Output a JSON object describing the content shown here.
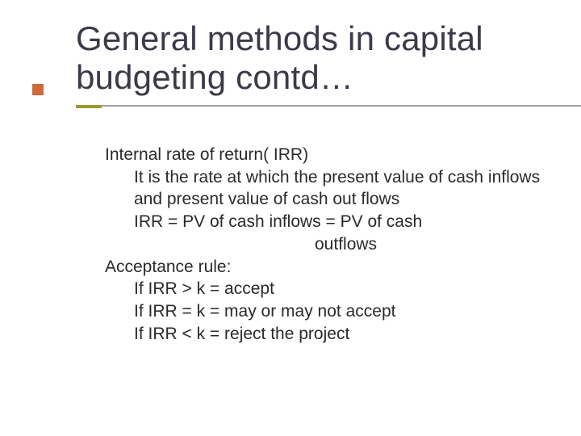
{
  "slide": {
    "title": "General methods in capital budgeting contd…",
    "accent_square_color": "#d06a3a",
    "underline_short_color": "#9a9a2e",
    "underline_long_color": "#a0a0a0",
    "title_color": "#3a3a4a",
    "text_color": "#2a2a2a",
    "title_fontsize": 42,
    "body_fontsize": 21,
    "content": {
      "heading1": "Internal rate of return( IRR)",
      "def": "It is the rate at which the present value of cash inflows and present value of cash out flows",
      "formula_l1": "IRR = PV of cash inflows = PV of cash",
      "formula_l2": "outflows",
      "heading2": "Acceptance rule:",
      "rule1": "If IRR > k = accept",
      "rule2": "If IRR = k = may or may not accept",
      "rule3": "If IRR < k = reject the project"
    }
  }
}
